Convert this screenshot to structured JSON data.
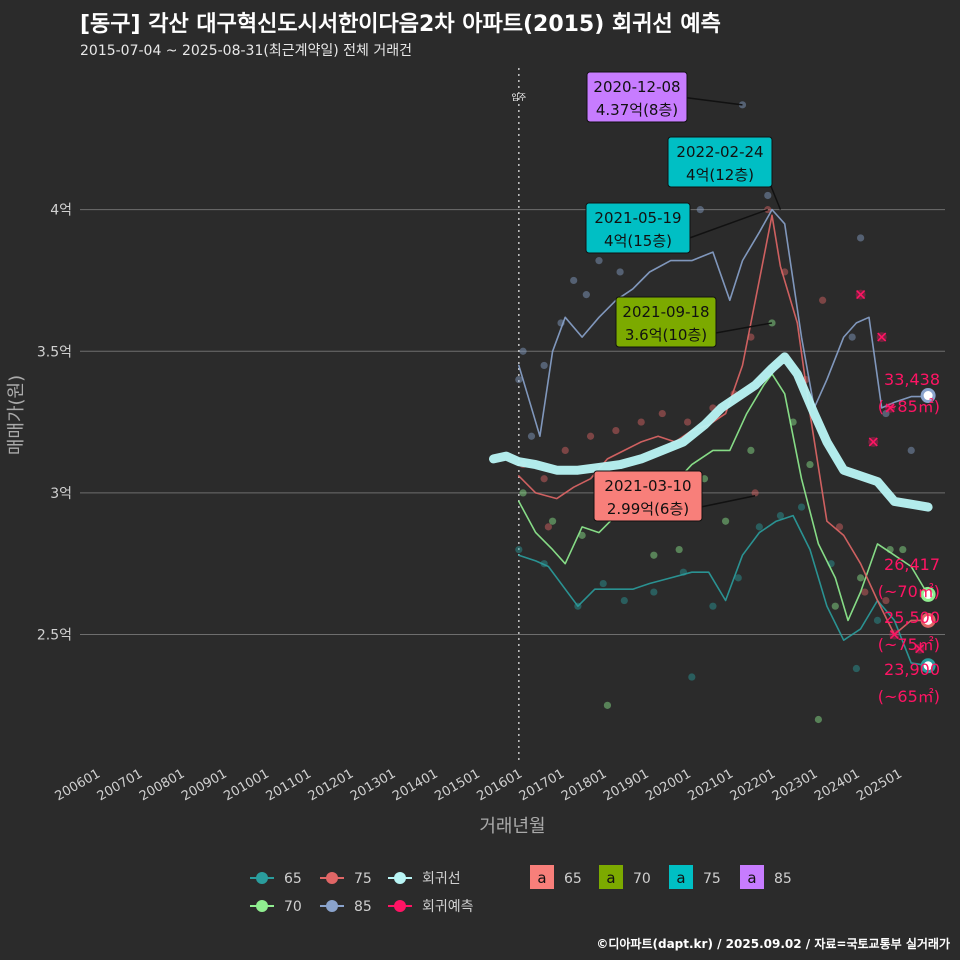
{
  "title": "[동구] 각산 대구혁신도시서한이다음2차 아파트(2015) 회귀선 예측",
  "subtitle": "2015-07-04 ~ 2025-08-31(최근계약일) 전체 거래건",
  "caption": "©디아파트(dapt.kr) / 2025.09.02 / 자료=국토교통부 실거래가",
  "colors": {
    "background": "#2b2b2b",
    "grid": "#6e6e6e",
    "s65": "#2a9d9d",
    "s70": "#90ee90",
    "s75": "#e06666",
    "s85": "#8aa3cc",
    "trend": "#b9f5f5",
    "forecast": "#ff1464",
    "lab65": "#f87f7a",
    "lab70": "#7caa00",
    "lab75": "#00bfc4",
    "lab85": "#c77cff"
  },
  "chart_data": {
    "type": "line",
    "xlabel": "거래년월",
    "ylabel": "매매가(원)",
    "x_ticks": [
      "200601",
      "200701",
      "200801",
      "200901",
      "201001",
      "201101",
      "201201",
      "201301",
      "201401",
      "201501",
      "201601",
      "201701",
      "201801",
      "201901",
      "202001",
      "202101",
      "202201",
      "202301",
      "202401",
      "202501"
    ],
    "y_ticks": [
      {
        "value": 2.5,
        "label": "2.5억"
      },
      {
        "value": 3.0,
        "label": "3억"
      },
      {
        "value": 3.5,
        "label": "3.5억"
      },
      {
        "value": 4.0,
        "label": "4억"
      }
    ],
    "xlim": [
      2005.5,
      2026.0
    ],
    "ylim": [
      2.05,
      4.5
    ],
    "move_in": {
      "x": 2015.9,
      "label": "입주"
    },
    "series": [
      {
        "name": "65",
        "color_key": "s65",
        "points": [
          [
            2015.9,
            2.78
          ],
          [
            2016.3,
            2.76
          ],
          [
            2016.6,
            2.74
          ],
          [
            2017.3,
            2.6
          ],
          [
            2017.7,
            2.66
          ],
          [
            2018.2,
            2.66
          ],
          [
            2018.6,
            2.66
          ],
          [
            2019.0,
            2.68
          ],
          [
            2019.5,
            2.7
          ],
          [
            2020.0,
            2.72
          ],
          [
            2020.4,
            2.72
          ],
          [
            2020.8,
            2.62
          ],
          [
            2021.2,
            2.78
          ],
          [
            2021.6,
            2.86
          ],
          [
            2022.0,
            2.9
          ],
          [
            2022.4,
            2.92
          ],
          [
            2022.8,
            2.8
          ],
          [
            2023.2,
            2.6
          ],
          [
            2023.6,
            2.48
          ],
          [
            2024.0,
            2.52
          ],
          [
            2024.4,
            2.62
          ],
          [
            2024.8,
            2.55
          ],
          [
            2025.2,
            2.4
          ],
          [
            2025.6,
            2.39
          ]
        ]
      },
      {
        "name": "70",
        "color_key": "s70",
        "points": [
          [
            2015.9,
            2.97
          ],
          [
            2016.3,
            2.86
          ],
          [
            2016.7,
            2.8
          ],
          [
            2017.0,
            2.75
          ],
          [
            2017.4,
            2.88
          ],
          [
            2017.8,
            2.86
          ],
          [
            2018.2,
            2.92
          ],
          [
            2018.6,
            2.92
          ],
          [
            2019.0,
            2.98
          ],
          [
            2019.5,
            3.02
          ],
          [
            2020.0,
            3.1
          ],
          [
            2020.5,
            3.15
          ],
          [
            2020.9,
            3.15
          ],
          [
            2021.3,
            3.28
          ],
          [
            2021.7,
            3.38
          ],
          [
            2021.9,
            3.42
          ],
          [
            2022.2,
            3.35
          ],
          [
            2022.6,
            3.05
          ],
          [
            2023.0,
            2.82
          ],
          [
            2023.4,
            2.7
          ],
          [
            2023.7,
            2.55
          ],
          [
            2024.0,
            2.65
          ],
          [
            2024.4,
            2.82
          ],
          [
            2024.8,
            2.78
          ],
          [
            2025.2,
            2.74
          ],
          [
            2025.6,
            2.64
          ]
        ]
      },
      {
        "name": "75",
        "color_key": "s75",
        "points": [
          [
            2015.9,
            3.06
          ],
          [
            2016.3,
            3.0
          ],
          [
            2016.8,
            2.98
          ],
          [
            2017.2,
            3.02
          ],
          [
            2017.6,
            3.05
          ],
          [
            2018.0,
            3.12
          ],
          [
            2018.4,
            3.15
          ],
          [
            2018.8,
            3.18
          ],
          [
            2019.2,
            3.2
          ],
          [
            2019.6,
            3.18
          ],
          [
            2020.0,
            3.22
          ],
          [
            2020.4,
            3.24
          ],
          [
            2020.8,
            3.28
          ],
          [
            2021.2,
            3.45
          ],
          [
            2021.6,
            3.75
          ],
          [
            2021.9,
            3.98
          ],
          [
            2022.1,
            3.8
          ],
          [
            2022.5,
            3.6
          ],
          [
            2022.8,
            3.28
          ],
          [
            2023.2,
            2.9
          ],
          [
            2023.6,
            2.85
          ],
          [
            2024.0,
            2.75
          ],
          [
            2024.4,
            2.62
          ],
          [
            2024.8,
            2.5
          ],
          [
            2025.2,
            2.55
          ],
          [
            2025.6,
            2.55
          ]
        ]
      },
      {
        "name": "85",
        "color_key": "s85",
        "points": [
          [
            2015.9,
            3.45
          ],
          [
            2016.1,
            3.35
          ],
          [
            2016.4,
            3.2
          ],
          [
            2016.7,
            3.5
          ],
          [
            2017.0,
            3.62
          ],
          [
            2017.4,
            3.55
          ],
          [
            2017.8,
            3.62
          ],
          [
            2018.2,
            3.68
          ],
          [
            2018.6,
            3.72
          ],
          [
            2019.0,
            3.78
          ],
          [
            2019.5,
            3.82
          ],
          [
            2020.0,
            3.82
          ],
          [
            2020.5,
            3.85
          ],
          [
            2020.9,
            3.68
          ],
          [
            2021.2,
            3.82
          ],
          [
            2021.6,
            3.92
          ],
          [
            2021.9,
            4.0
          ],
          [
            2022.2,
            3.95
          ],
          [
            2022.6,
            3.55
          ],
          [
            2022.9,
            3.3
          ],
          [
            2023.2,
            3.4
          ],
          [
            2023.6,
            3.55
          ],
          [
            2023.9,
            3.6
          ],
          [
            2024.2,
            3.62
          ],
          [
            2024.5,
            3.3
          ],
          [
            2024.8,
            3.32
          ],
          [
            2025.2,
            3.34
          ],
          [
            2025.6,
            3.34
          ]
        ]
      },
      {
        "name": "회귀선",
        "color_key": "trend",
        "points": [
          [
            2015.3,
            3.12
          ],
          [
            2015.6,
            3.13
          ],
          [
            2015.9,
            3.11
          ],
          [
            2016.3,
            3.1
          ],
          [
            2016.8,
            3.08
          ],
          [
            2017.3,
            3.08
          ],
          [
            2017.8,
            3.09
          ],
          [
            2018.3,
            3.1
          ],
          [
            2018.8,
            3.12
          ],
          [
            2019.3,
            3.15
          ],
          [
            2019.8,
            3.18
          ],
          [
            2020.3,
            3.24
          ],
          [
            2020.7,
            3.3
          ],
          [
            2021.1,
            3.34
          ],
          [
            2021.5,
            3.38
          ],
          [
            2021.9,
            3.44
          ],
          [
            2022.2,
            3.48
          ],
          [
            2022.5,
            3.42
          ],
          [
            2022.9,
            3.28
          ],
          [
            2023.2,
            3.18
          ],
          [
            2023.6,
            3.08
          ],
          [
            2024.0,
            3.06
          ],
          [
            2024.4,
            3.04
          ],
          [
            2024.8,
            2.97
          ],
          [
            2025.2,
            2.96
          ],
          [
            2025.6,
            2.95
          ]
        ]
      }
    ],
    "forecast": [
      {
        "label": "33,438",
        "sub": "(~85㎡)",
        "value": 3.3438,
        "color_key": "s85"
      },
      {
        "label": "26,417",
        "sub": "(~70㎡)",
        "value": 2.6417,
        "color_key": "s70"
      },
      {
        "label": "25,500",
        "sub": "(~75㎡)",
        "value": 2.55,
        "color_key": "s75"
      },
      {
        "label": "23,900",
        "sub": "(~65㎡)",
        "value": 2.39,
        "color_key": "s65"
      }
    ],
    "forecast_x": 2025.6,
    "forecast_marks": [
      [
        2024.0,
        3.7
      ],
      [
        2024.5,
        3.55
      ],
      [
        2024.3,
        3.18
      ],
      [
        2024.7,
        3.3
      ],
      [
        2024.8,
        2.5
      ],
      [
        2025.4,
        2.45
      ]
    ],
    "scatter": [
      [
        2015.9,
        3.4,
        "s85"
      ],
      [
        2016.0,
        3.5,
        "s85"
      ],
      [
        2016.2,
        3.2,
        "s85"
      ],
      [
        2016.5,
        3.45,
        "s85"
      ],
      [
        2016.9,
        3.6,
        "s85"
      ],
      [
        2017.2,
        3.75,
        "s85"
      ],
      [
        2017.5,
        3.7,
        "s85"
      ],
      [
        2017.8,
        3.82,
        "s85"
      ],
      [
        2018.3,
        3.78,
        "s85"
      ],
      [
        2019.0,
        3.9,
        "s85"
      ],
      [
        2019.8,
        3.92,
        "s85"
      ],
      [
        2020.2,
        4.0,
        "s85"
      ],
      [
        2021.2,
        4.37,
        "s85"
      ],
      [
        2021.8,
        4.05,
        "s85"
      ],
      [
        2023.8,
        3.55,
        "s85"
      ],
      [
        2024.0,
        3.9,
        "s85"
      ],
      [
        2024.6,
        3.28,
        "s85"
      ],
      [
        2025.2,
        3.15,
        "s85"
      ],
      [
        2016.0,
        3.1,
        "s75"
      ],
      [
        2016.5,
        3.05,
        "s75"
      ],
      [
        2017.0,
        3.15,
        "s75"
      ],
      [
        2017.6,
        3.2,
        "s75"
      ],
      [
        2018.2,
        3.22,
        "s75"
      ],
      [
        2018.8,
        3.25,
        "s75"
      ],
      [
        2019.3,
        3.28,
        "s75"
      ],
      [
        2019.9,
        3.25,
        "s75"
      ],
      [
        2020.5,
        3.3,
        "s75"
      ],
      [
        2021.0,
        3.35,
        "s75"
      ],
      [
        2021.4,
        3.55,
        "s75"
      ],
      [
        2021.8,
        4.0,
        "s75"
      ],
      [
        2022.2,
        3.78,
        "s75"
      ],
      [
        2022.7,
        3.4,
        "s75"
      ],
      [
        2023.1,
        3.68,
        "s75"
      ],
      [
        2023.5,
        2.88,
        "s75"
      ],
      [
        2024.1,
        2.65,
        "s75"
      ],
      [
        2024.6,
        2.62,
        "s75"
      ],
      [
        2021.5,
        3.0,
        "s75"
      ],
      [
        2018.2,
        2.95,
        "s75"
      ],
      [
        2016.6,
        2.88,
        "s75"
      ],
      [
        2016.0,
        3.0,
        "s70"
      ],
      [
        2016.7,
        2.9,
        "s70"
      ],
      [
        2017.4,
        2.85,
        "s70"
      ],
      [
        2018.0,
        3.05,
        "s70"
      ],
      [
        2018.5,
        2.95,
        "s70"
      ],
      [
        2019.1,
        2.78,
        "s70"
      ],
      [
        2019.7,
        2.8,
        "s70"
      ],
      [
        2020.3,
        3.05,
        "s70"
      ],
      [
        2020.8,
        2.9,
        "s70"
      ],
      [
        2021.4,
        3.15,
        "s70"
      ],
      [
        2021.9,
        3.6,
        "s70"
      ],
      [
        2022.4,
        3.25,
        "s70"
      ],
      [
        2022.8,
        3.1,
        "s70"
      ],
      [
        2023.4,
        2.6,
        "s70"
      ],
      [
        2024.0,
        2.7,
        "s70"
      ],
      [
        2024.7,
        2.8,
        "s70"
      ],
      [
        2025.0,
        2.8,
        "s70"
      ],
      [
        2018.0,
        2.25,
        "s70"
      ],
      [
        2015.9,
        2.8,
        "s65"
      ],
      [
        2016.5,
        2.75,
        "s65"
      ],
      [
        2017.3,
        2.6,
        "s65"
      ],
      [
        2017.9,
        2.68,
        "s65"
      ],
      [
        2018.4,
        2.62,
        "s65"
      ],
      [
        2019.1,
        2.65,
        "s65"
      ],
      [
        2019.8,
        2.72,
        "s65"
      ],
      [
        2020.5,
        2.6,
        "s65"
      ],
      [
        2021.1,
        2.7,
        "s65"
      ],
      [
        2021.6,
        2.88,
        "s65"
      ],
      [
        2022.1,
        2.92,
        "s65"
      ],
      [
        2022.6,
        2.95,
        "s65"
      ],
      [
        2023.3,
        2.75,
        "s65"
      ],
      [
        2023.9,
        2.38,
        "s65"
      ],
      [
        2020.0,
        2.35,
        "s65"
      ],
      [
        2024.4,
        2.55,
        "s65"
      ],
      [
        2023.0,
        2.2,
        "s70"
      ]
    ],
    "annotations": [
      {
        "date": "2020-12-08",
        "price": "4.37억(8층)",
        "color_key": "lab85"
      },
      {
        "date": "2022-02-24",
        "price": "4억(12층)",
        "color_key": "lab75"
      },
      {
        "date": "2021-05-19",
        "price": "4억(15층)",
        "color_key": "lab75"
      },
      {
        "date": "2021-09-18",
        "price": "3.6억(10층)",
        "color_key": "lab70"
      },
      {
        "date": "2021-03-10",
        "price": "2.99억(6층)",
        "color_key": "lab65"
      }
    ],
    "legend": {
      "position": "bottom",
      "lines": [
        {
          "label": "65",
          "color_key": "s65"
        },
        {
          "label": "75",
          "color_key": "s75"
        },
        {
          "label": "회귀선",
          "color_key": "trend"
        },
        {
          "label": "70",
          "color_key": "s70"
        },
        {
          "label": "85",
          "color_key": "s85"
        },
        {
          "label": "회귀예측",
          "color_key": "forecast"
        }
      ],
      "boxes": [
        {
          "glyph": "a",
          "label": "65",
          "color_key": "lab65"
        },
        {
          "glyph": "a",
          "label": "70",
          "color_key": "lab70"
        },
        {
          "glyph": "a",
          "label": "75",
          "color_key": "lab75"
        },
        {
          "glyph": "a",
          "label": "85",
          "color_key": "lab85"
        }
      ]
    }
  }
}
